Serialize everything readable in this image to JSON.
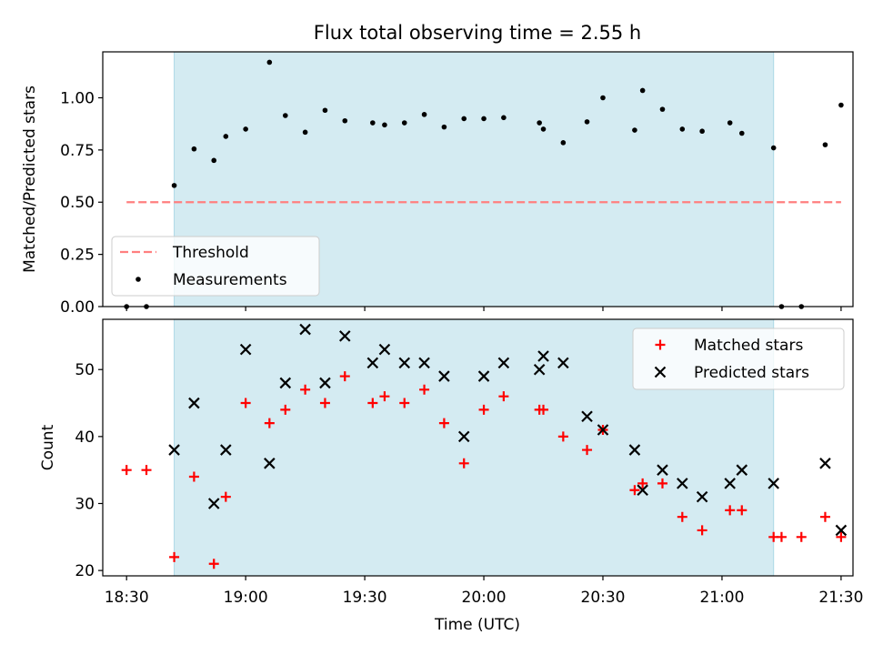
{
  "title": "Flux total observing time = 2.55 h",
  "xlabel": "Time (UTC)",
  "x_ticks": [
    "18:30",
    "19:00",
    "19:30",
    "20:00",
    "20:30",
    "21:00",
    "21:30"
  ],
  "colors": {
    "shade": "#add8e6",
    "threshold": "#ff7f7f",
    "matched": "#ff0000",
    "predicted": "#000000",
    "measurement": "#000000"
  },
  "chart_data": [
    {
      "type": "scatter",
      "ylabel": "Matched/Predicted stars",
      "ylim": [
        0,
        1.22
      ],
      "y_ticks": [
        "0.00",
        "0.25",
        "0.50",
        "0.75",
        "1.00"
      ],
      "xlim": [
        "18:24",
        "21:33"
      ],
      "shaded_span": [
        "18:42",
        "21:13"
      ],
      "threshold": {
        "name": "Threshold",
        "value": 0.5,
        "x_range": [
          "18:30",
          "21:30"
        ]
      },
      "legend": {
        "placement": "lower-left",
        "entries": [
          "Threshold",
          "Measurements"
        ]
      },
      "series": [
        {
          "name": "Measurements",
          "points": [
            [
              "18:30",
              0.0
            ],
            [
              "18:35",
              0.0
            ],
            [
              "18:42",
              0.58
            ],
            [
              "18:47",
              0.755
            ],
            [
              "18:52",
              0.7
            ],
            [
              "18:55",
              0.815
            ],
            [
              "19:00",
              0.85
            ],
            [
              "19:06",
              1.17
            ],
            [
              "19:10",
              0.915
            ],
            [
              "19:15",
              0.835
            ],
            [
              "19:20",
              0.94
            ],
            [
              "19:25",
              0.89
            ],
            [
              "19:32",
              0.88
            ],
            [
              "19:35",
              0.87
            ],
            [
              "19:40",
              0.88
            ],
            [
              "19:45",
              0.92
            ],
            [
              "19:50",
              0.86
            ],
            [
              "19:55",
              0.9
            ],
            [
              "20:00",
              0.9
            ],
            [
              "20:05",
              0.905
            ],
            [
              "20:14",
              0.88
            ],
            [
              "20:15",
              0.85
            ],
            [
              "20:20",
              0.785
            ],
            [
              "20:26",
              0.885
            ],
            [
              "20:30",
              1.0
            ],
            [
              "20:38",
              0.845
            ],
            [
              "20:40",
              1.035
            ],
            [
              "20:45",
              0.945
            ],
            [
              "20:50",
              0.85
            ],
            [
              "20:55",
              0.84
            ],
            [
              "21:02",
              0.88
            ],
            [
              "21:05",
              0.83
            ],
            [
              "21:13",
              0.76
            ],
            [
              "21:15",
              0.0
            ],
            [
              "21:20",
              0.0
            ],
            [
              "21:26",
              0.775
            ],
            [
              "21:30",
              0.965
            ]
          ]
        }
      ]
    },
    {
      "type": "scatter",
      "ylabel": "Count",
      "ylim": [
        19.2,
        57.5
      ],
      "y_ticks": [
        "20",
        "30",
        "40",
        "50"
      ],
      "xlim": [
        "18:24",
        "21:33"
      ],
      "shaded_span": [
        "18:42",
        "21:13"
      ],
      "legend": {
        "placement": "top-right",
        "entries": [
          "Matched stars",
          "Predicted stars"
        ]
      },
      "series": [
        {
          "name": "Matched stars",
          "marker": "plus",
          "points": [
            [
              "18:30",
              35
            ],
            [
              "18:35",
              35
            ],
            [
              "18:42",
              22
            ],
            [
              "18:47",
              34
            ],
            [
              "18:52",
              21
            ],
            [
              "18:55",
              31
            ],
            [
              "19:00",
              45
            ],
            [
              "19:06",
              42
            ],
            [
              "19:10",
              44
            ],
            [
              "19:15",
              47
            ],
            [
              "19:20",
              45
            ],
            [
              "19:25",
              49
            ],
            [
              "19:32",
              45
            ],
            [
              "19:35",
              46
            ],
            [
              "19:40",
              45
            ],
            [
              "19:45",
              47
            ],
            [
              "19:50",
              42
            ],
            [
              "19:55",
              36
            ],
            [
              "20:00",
              44
            ],
            [
              "20:05",
              46
            ],
            [
              "20:14",
              44
            ],
            [
              "20:15",
              44
            ],
            [
              "20:20",
              40
            ],
            [
              "20:26",
              38
            ],
            [
              "20:30",
              41
            ],
            [
              "20:38",
              32
            ],
            [
              "20:40",
              33
            ],
            [
              "20:45",
              33
            ],
            [
              "20:50",
              28
            ],
            [
              "20:55",
              26
            ],
            [
              "21:02",
              29
            ],
            [
              "21:05",
              29
            ],
            [
              "21:13",
              25
            ],
            [
              "21:15",
              25
            ],
            [
              "21:20",
              25
            ],
            [
              "21:26",
              28
            ],
            [
              "21:30",
              25
            ]
          ]
        },
        {
          "name": "Predicted stars",
          "marker": "x",
          "points": [
            [
              "18:42",
              38
            ],
            [
              "18:47",
              45
            ],
            [
              "18:52",
              30
            ],
            [
              "18:55",
              38
            ],
            [
              "19:00",
              53
            ],
            [
              "19:06",
              36
            ],
            [
              "19:10",
              48
            ],
            [
              "19:15",
              56
            ],
            [
              "19:20",
              48
            ],
            [
              "19:25",
              55
            ],
            [
              "19:32",
              51
            ],
            [
              "19:35",
              53
            ],
            [
              "19:40",
              51
            ],
            [
              "19:45",
              51
            ],
            [
              "19:50",
              49
            ],
            [
              "19:55",
              40
            ],
            [
              "20:00",
              49
            ],
            [
              "20:05",
              51
            ],
            [
              "20:14",
              50
            ],
            [
              "20:15",
              52
            ],
            [
              "20:20",
              51
            ],
            [
              "20:26",
              43
            ],
            [
              "20:30",
              41
            ],
            [
              "20:38",
              38
            ],
            [
              "20:40",
              32
            ],
            [
              "20:45",
              35
            ],
            [
              "20:50",
              33
            ],
            [
              "20:55",
              31
            ],
            [
              "21:02",
              33
            ],
            [
              "21:05",
              35
            ],
            [
              "21:13",
              33
            ],
            [
              "21:26",
              36
            ],
            [
              "21:30",
              26
            ]
          ]
        }
      ]
    }
  ]
}
